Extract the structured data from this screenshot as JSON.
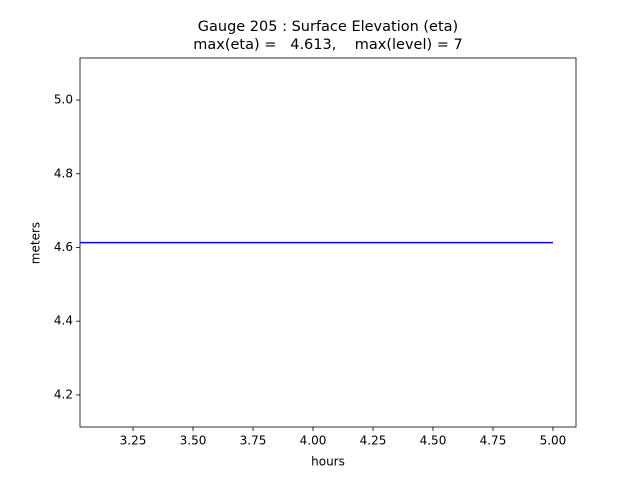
{
  "chart_data": {
    "type": "line",
    "title": "Gauge 205 : Surface Elevation (eta)",
    "subtitle": "max(eta) =   4.613,    max(level) = 7",
    "x_label": "hours",
    "y_label": "meters",
    "x": [
      3.03,
      5.0
    ],
    "series": [
      {
        "color": "#0000ff",
        "values": [
          4.613,
          4.613
        ]
      }
    ],
    "xlim": [
      3.029,
      5.096
    ],
    "ylim": [
      4.113,
      5.114
    ],
    "xticks": [
      3.25,
      {
        "value": 3.5,
        "label": "3.50"
      },
      3.75,
      {
        "value": 4,
        "label": "4.00"
      },
      4.25,
      {
        "value": 4.5,
        "label": "4.50"
      },
      4.75,
      {
        "value": 5,
        "label": "5.00"
      }
    ],
    "yticks": [
      4.2,
      4.4,
      4.6,
      4.8,
      {
        "value": 5,
        "label": "5.0"
      }
    ],
    "grid": false
  }
}
